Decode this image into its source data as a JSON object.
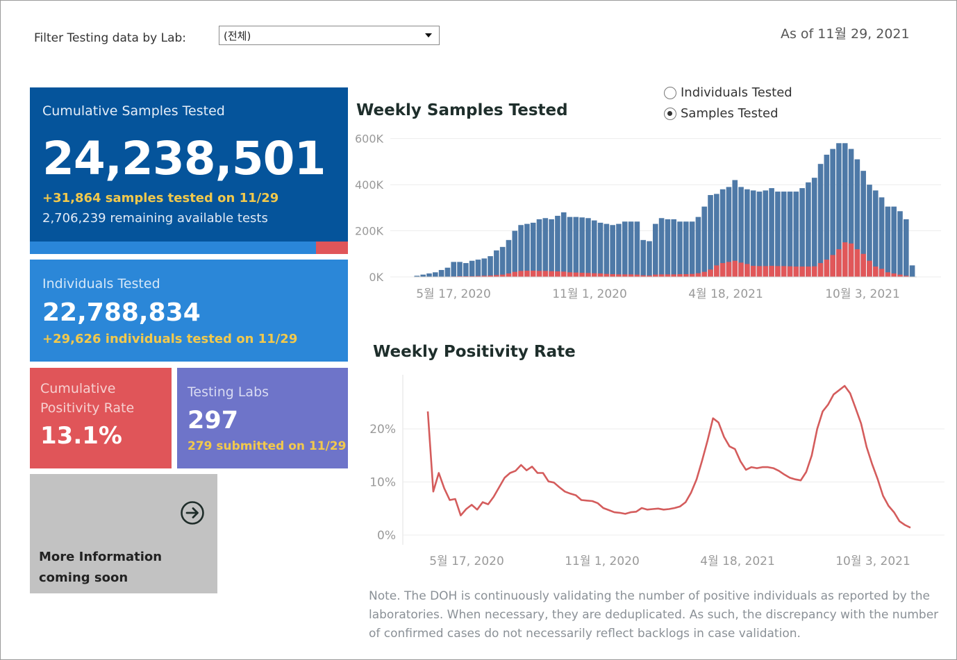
{
  "filter": {
    "label": "Filter Testing data by Lab:",
    "value": "(전체)"
  },
  "as_of": "As of 11월 29, 2021",
  "cumulative": {
    "title": "Cumulative Samples Tested",
    "value": "24,238,501",
    "delta": "+31,864 samples tested on 11/29",
    "remaining": "2,706,239 remaining available tests",
    "progress_fraction": 0.8995,
    "progress_colors": {
      "used": "#2a86d9",
      "remaining": "#e05559"
    }
  },
  "individuals": {
    "title": "Individuals Tested",
    "value": "22,788,834",
    "delta": "+29,626  individuals  tested on 11/29"
  },
  "positivity": {
    "title": "Cumulative Positivity Rate",
    "value": "13.1%"
  },
  "labs": {
    "title": "Testing Labs",
    "value": "297",
    "submitted": "279 submitted on 11/29"
  },
  "more_info": {
    "text": "More Information coming soon",
    "icon": "arrow-circle-right-icon"
  },
  "toggle": {
    "options": [
      {
        "label": "Individuals Tested",
        "selected": false
      },
      {
        "label": "Samples Tested",
        "selected": true
      }
    ]
  },
  "note": "Note. The DOH is continuously validating the number of positive individuals as reported by the laboratories. When necessary, they are deduplicated. As such, the discrepancy with the number of confirmed cases do not necessarily reflect backlogs in case validation.",
  "colors": {
    "samples": "#4e79a7",
    "positives": "#e15759",
    "line": "#d45c5c"
  },
  "chart_data": [
    {
      "type": "bar",
      "title": "Weekly Samples Tested",
      "y_ticks": [
        "0K",
        "200K",
        "400K",
        "600K"
      ],
      "x_ticks": [
        "5월 17, 2020",
        "11월 1, 2020",
        "4월 18, 2021",
        "10월 3, 2021"
      ],
      "ylim": [
        0,
        620000
      ],
      "grid": true,
      "series": [
        {
          "values": [
            5000,
            10000,
            15000,
            20000,
            30000,
            40000,
            65000,
            65000,
            60000,
            70000,
            75000,
            80000,
            90000,
            115000,
            130000,
            160000,
            200000,
            225000,
            230000,
            235000,
            250000,
            255000,
            250000,
            265000,
            280000,
            260000,
            260000,
            258000,
            255000,
            245000,
            235000,
            230000,
            225000,
            230000,
            240000,
            240000,
            240000,
            160000,
            155000,
            230000,
            255000,
            250000,
            250000,
            240000,
            240000,
            240000,
            260000,
            305000,
            355000,
            360000,
            380000,
            390000,
            420000,
            390000,
            380000,
            375000,
            370000,
            375000,
            385000,
            370000,
            370000,
            370000,
            370000,
            385000,
            410000,
            430000,
            490000,
            530000,
            555000,
            580000,
            580000,
            555000,
            510000,
            460000,
            400000,
            375000,
            345000,
            305000,
            305000,
            285000,
            250000,
            50000
          ]
        },
        {
          "values": [
            0,
            0,
            0,
            0,
            0,
            0,
            2000,
            3000,
            3000,
            3000,
            4000,
            5000,
            6000,
            8000,
            10000,
            15000,
            22000,
            26000,
            27000,
            27000,
            26000,
            26000,
            25000,
            24000,
            23000,
            20000,
            19000,
            18000,
            17000,
            16000,
            15000,
            13000,
            12000,
            11000,
            11000,
            11000,
            10000,
            7000,
            6000,
            10000,
            11000,
            11000,
            11000,
            12000,
            12000,
            13000,
            16000,
            22000,
            32000,
            50000,
            60000,
            65000,
            70000,
            62000,
            56000,
            48000,
            47000,
            47000,
            48000,
            47000,
            47000,
            46000,
            45000,
            45000,
            45000,
            46000,
            60000,
            75000,
            95000,
            120000,
            150000,
            145000,
            120000,
            100000,
            70000,
            45000,
            35000,
            20000,
            15000,
            10000,
            5000,
            1000
          ]
        }
      ]
    },
    {
      "type": "line",
      "title": "Weekly Positivity Rate",
      "y_ticks": [
        "0%",
        "10%",
        "20%"
      ],
      "x_ticks": [
        "5월 17, 2020",
        "11월 1, 2020",
        "4월 18, 2021",
        "10월 3, 2021"
      ],
      "ylim": [
        -1,
        30
      ],
      "grid": true,
      "values": [
        23.3,
        8.2,
        11.7,
        8.8,
        6.6,
        6.8,
        3.7,
        4.9,
        5.7,
        4.8,
        6.2,
        5.8,
        7.2,
        9.0,
        10.8,
        11.7,
        12.1,
        13.2,
        12.2,
        12.9,
        11.7,
        11.7,
        10.1,
        9.9,
        9.0,
        8.2,
        7.8,
        7.5,
        6.6,
        6.5,
        6.4,
        6.0,
        5.1,
        4.7,
        4.3,
        4.2,
        4.0,
        4.3,
        4.4,
        5.1,
        4.8,
        4.9,
        5.0,
        4.8,
        4.9,
        5.1,
        5.4,
        6.2,
        8.0,
        10.5,
        14.0,
        17.8,
        22.0,
        21.2,
        18.5,
        16.7,
        16.2,
        13.9,
        12.3,
        12.8,
        12.6,
        12.8,
        12.8,
        12.6,
        12.1,
        11.4,
        10.8,
        10.5,
        10.3,
        11.9,
        15.0,
        20.0,
        23.3,
        24.6,
        26.5,
        27.3,
        28.1,
        26.7,
        23.9,
        21.0,
        16.6,
        13.4,
        10.6,
        7.4,
        5.5,
        4.3,
        2.6,
        1.9,
        1.4
      ]
    }
  ]
}
